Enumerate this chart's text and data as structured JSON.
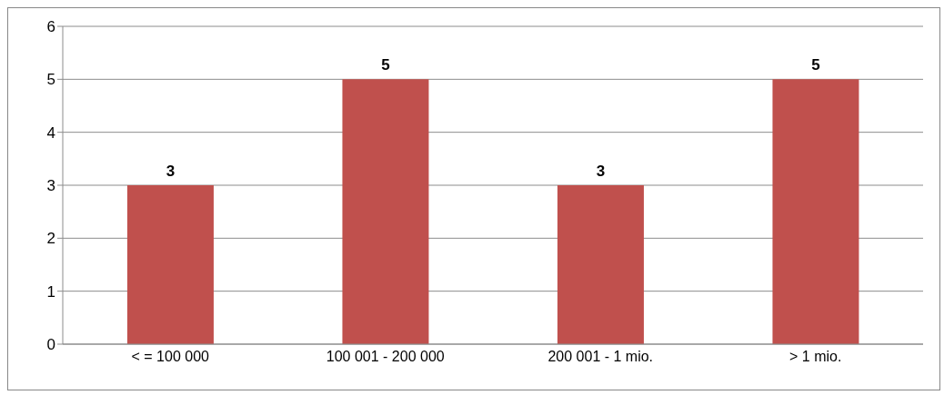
{
  "chart_data": {
    "type": "bar",
    "categories": [
      "< = 100 000",
      "100 001 - 200 000",
      "200 001 - 1 mio.",
      "> 1 mio."
    ],
    "values": [
      3,
      5,
      3,
      5
    ],
    "color": "#c0504d",
    "ylim": [
      0,
      6
    ],
    "yticks": [
      0,
      1,
      2,
      3,
      4,
      5,
      6
    ],
    "grid": "y",
    "data_labels": true
  }
}
